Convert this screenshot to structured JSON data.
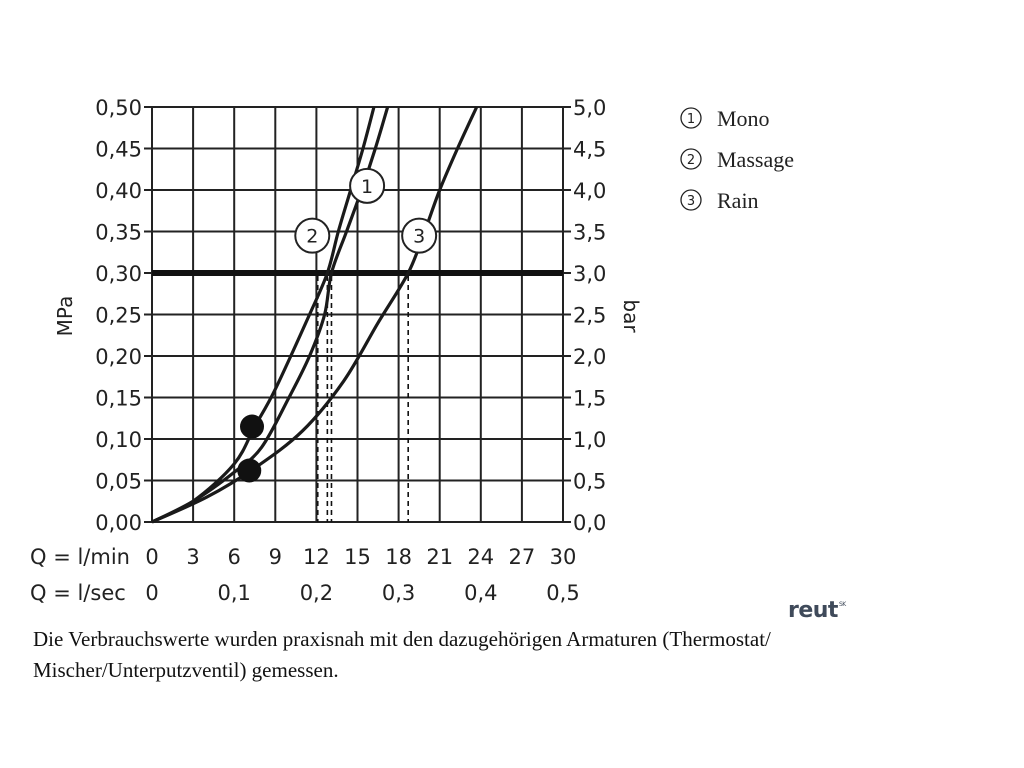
{
  "chart_data": {
    "type": "line",
    "title": "",
    "ylabel_left": "MPa",
    "ylabel_right": "bar",
    "xlim": [
      0,
      30
    ],
    "ylim_mpa": [
      0,
      0.5
    ],
    "ylim_bar": [
      0,
      5
    ],
    "grid": true,
    "yticks_left": [
      "0,00",
      "0,05",
      "0,10",
      "0,15",
      "0,20",
      "0,25",
      "0,30",
      "0,35",
      "0,40",
      "0,45",
      "0,50"
    ],
    "yticks_right": [
      "0,0",
      "0,5",
      "1,0",
      "1,5",
      "2,0",
      "2,5",
      "3,0",
      "3,5",
      "4,0",
      "4,5",
      "5,0"
    ],
    "x_rows": [
      {
        "label": "Q = l/min",
        "ticks": [
          "0",
          "3",
          "6",
          "9",
          "12",
          "15",
          "18",
          "21",
          "24",
          "27",
          "30"
        ],
        "positions": [
          0,
          3,
          6,
          9,
          12,
          15,
          18,
          21,
          24,
          27,
          30
        ]
      },
      {
        "label": "Q = l/sec",
        "ticks": [
          "0",
          "0,1",
          "0,2",
          "0,3",
          "0,4",
          "0,5"
        ],
        "positions": [
          0,
          6,
          12,
          18,
          24,
          30
        ]
      }
    ],
    "reference_line": {
      "y": 0.3
    },
    "series": [
      {
        "name": "Mono",
        "marker": "1",
        "points": [
          [
            0,
            0
          ],
          [
            3,
            0.025
          ],
          [
            6,
            0.06
          ],
          [
            8,
            0.09
          ],
          [
            10,
            0.15
          ],
          [
            11.5,
            0.2
          ],
          [
            12.6,
            0.25
          ],
          [
            13.1,
            0.3
          ],
          [
            14.2,
            0.35
          ],
          [
            15.3,
            0.4
          ],
          [
            16.3,
            0.45
          ],
          [
            17.2,
            0.5
          ]
        ],
        "label_at": [
          15.7,
          0.405
        ],
        "drop_x": 13.1
      },
      {
        "name": "Massage",
        "marker": "2",
        "points": [
          [
            0,
            0
          ],
          [
            3,
            0.025
          ],
          [
            6,
            0.07
          ],
          [
            7.5,
            0.115
          ],
          [
            9,
            0.16
          ],
          [
            11.5,
            0.25
          ],
          [
            12.8,
            0.3
          ],
          [
            13.6,
            0.35
          ],
          [
            14.5,
            0.4
          ],
          [
            15.4,
            0.45
          ],
          [
            16.2,
            0.5
          ]
        ],
        "label_at": [
          11.7,
          0.345
        ],
        "drop_x": 12.8
      },
      {
        "name": "Rain",
        "marker": "3",
        "points": [
          [
            0,
            0
          ],
          [
            4,
            0.03
          ],
          [
            7.5,
            0.065
          ],
          [
            11,
            0.11
          ],
          [
            14,
            0.17
          ],
          [
            16.5,
            0.24
          ],
          [
            18.7,
            0.3
          ],
          [
            19.9,
            0.35
          ],
          [
            21,
            0.4
          ],
          [
            22.3,
            0.45
          ],
          [
            23.7,
            0.5
          ]
        ],
        "label_at": [
          19.5,
          0.345
        ],
        "drop_x": 18.7
      }
    ],
    "markers_filled": [
      [
        7.3,
        0.115
      ],
      [
        7.1,
        0.062
      ]
    ],
    "extra_dashed_x": [
      12.1
    ]
  },
  "legend": [
    {
      "num": "1",
      "label": "Mono"
    },
    {
      "num": "2",
      "label": "Massage"
    },
    {
      "num": "3",
      "label": "Rain"
    }
  ],
  "caption": {
    "line1": "Die Verbrauchswerte wurden praxisnah mit den dazugehörigen Armaturen (Thermostat/",
    "line2": "Mischer/Unterputzventil) gemessen."
  },
  "logo": {
    "text": "reut",
    "sup": "SK"
  }
}
